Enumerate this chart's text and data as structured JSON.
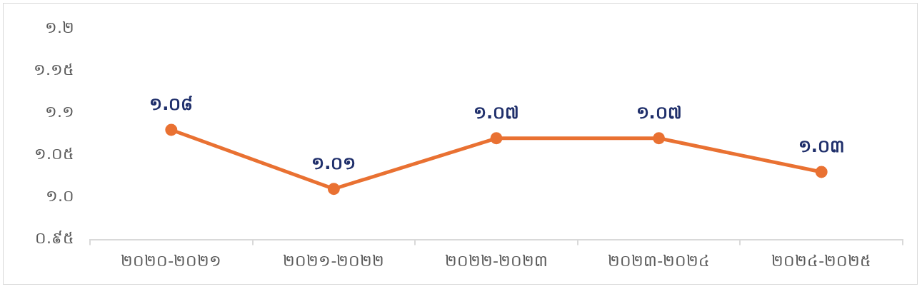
{
  "chart_data": {
    "type": "line",
    "categories": [
      "២០២០-២០២១",
      "២០២១-២០២២",
      "២០២២-២០២៣",
      "២០២៣-២០២៤",
      "២០២៤-២០២៥"
    ],
    "series": [
      {
        "color": "#e97132",
        "values": [
          1.08,
          1.01,
          1.07,
          1.07,
          1.03
        ],
        "value_labels": [
          "១.០៨",
          "១.០១",
          "១.០៧",
          "១.០៧",
          "១.០៣"
        ]
      }
    ],
    "ylim": [
      0.95,
      1.2
    ],
    "yticks": [
      {
        "value": 0.95,
        "label": "០.៩៥"
      },
      {
        "value": 1.0,
        "label": "១.០"
      },
      {
        "value": 1.05,
        "label": "១.០៥"
      },
      {
        "value": 1.1,
        "label": "១.១"
      },
      {
        "value": 1.15,
        "label": "១.១៥"
      },
      {
        "value": 1.2,
        "label": "១.២"
      }
    ],
    "grid": false,
    "legend": false,
    "marker": "circle",
    "line_style": "solid"
  }
}
